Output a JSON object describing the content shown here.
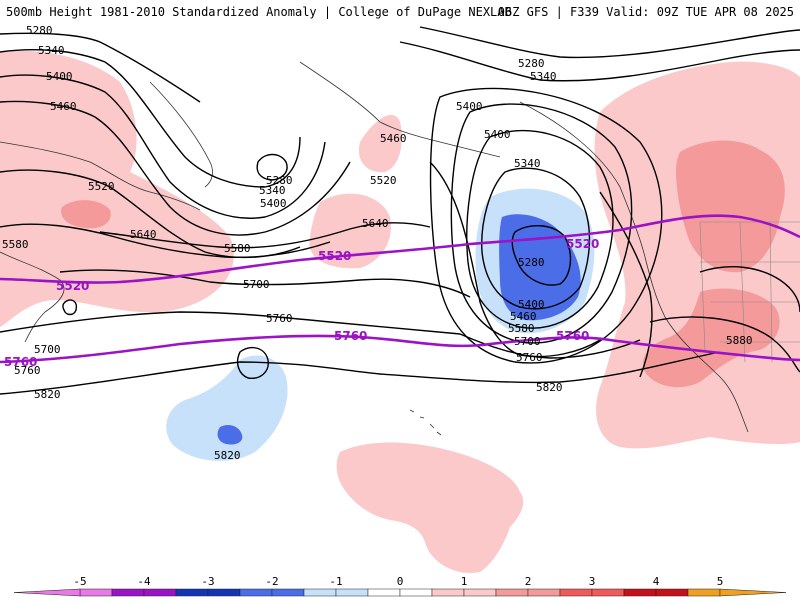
{
  "header": {
    "title_left": "500mb Height 1981-2010 Standardized Anomaly | College of DuPage NEXLAB",
    "title_right": "06Z GFS | F339 Valid: 09Z TUE APR 08 2025"
  },
  "colors": {
    "neg5": "#e879e8",
    "neg4": "#9b13c4",
    "neg3": "#1236b3",
    "neg2": "#4b6ee8",
    "neg1": "#c7e1fb",
    "pos1": "#fbc9c9",
    "pos2": "#f59a9a",
    "pos3": "#f05a5a",
    "pos4": "#c4101a",
    "pos5": "#f0a020",
    "highlight": "#9b13c4"
  },
  "contours": {
    "black_labels": [
      "5280",
      "5340",
      "5400",
      "5460",
      "5520",
      "5580",
      "5640",
      "5700",
      "5760",
      "5820",
      "5880"
    ],
    "labels": [
      {
        "key": "c5280_tl",
        "text": "5280"
      },
      {
        "key": "c5340_tl",
        "text": "5340"
      },
      {
        "key": "c5400_tl",
        "text": "5400"
      },
      {
        "key": "c5460_l",
        "text": "5460"
      },
      {
        "key": "c5520_l",
        "text": "5520"
      },
      {
        "key": "c5580_l",
        "text": "5580"
      },
      {
        "key": "c5640_l",
        "text": "5640"
      },
      {
        "key": "c5700_l",
        "text": "5700"
      },
      {
        "key": "c5760_l",
        "text": "5760"
      },
      {
        "key": "c5820_l",
        "text": "5820"
      },
      {
        "key": "c5280_ak",
        "text": "5280"
      },
      {
        "key": "c5340_ak",
        "text": "5340"
      },
      {
        "key": "c5400_ak",
        "text": "5400"
      },
      {
        "key": "c5460_bs",
        "text": "5460"
      },
      {
        "key": "c5520_bs",
        "text": "5520"
      },
      {
        "key": "c5580_m",
        "text": "5580"
      },
      {
        "key": "c5640_m",
        "text": "5640"
      },
      {
        "key": "c5700_m",
        "text": "5700"
      },
      {
        "key": "c5760_m",
        "text": "5760"
      },
      {
        "key": "c5400_gulf",
        "text": "5400"
      },
      {
        "key": "c5400_gulf2",
        "text": "5400"
      },
      {
        "key": "c5340_low",
        "text": "5340"
      },
      {
        "key": "c5280_low",
        "text": "5280"
      },
      {
        "key": "c5400_low",
        "text": "5400"
      },
      {
        "key": "c5460_low",
        "text": "5460"
      },
      {
        "key": "c5520_low",
        "text": "5520"
      },
      {
        "key": "c5580_low",
        "text": "5580"
      },
      {
        "key": "c5700_low",
        "text": "5700"
      },
      {
        "key": "c5760_low",
        "text": "5760"
      },
      {
        "key": "c5820_low",
        "text": "5820"
      },
      {
        "key": "c5820_sw",
        "text": "5820"
      },
      {
        "key": "c5280_nr",
        "text": "5280"
      },
      {
        "key": "c5340_nr",
        "text": "5340"
      },
      {
        "key": "c5880",
        "text": "5880"
      },
      {
        "key": "c5700_w",
        "text": "5700"
      },
      {
        "key": "c5760_w",
        "text": "5760"
      },
      {
        "key": "c5820_w",
        "text": "5820"
      }
    ],
    "purple_5520": "5520",
    "purple_5760": "5760"
  },
  "colorbar": {
    "ticks": [
      "-5",
      "-4",
      "-3",
      "-2",
      "-1",
      "0",
      "1",
      "2",
      "3",
      "4",
      "5"
    ]
  }
}
